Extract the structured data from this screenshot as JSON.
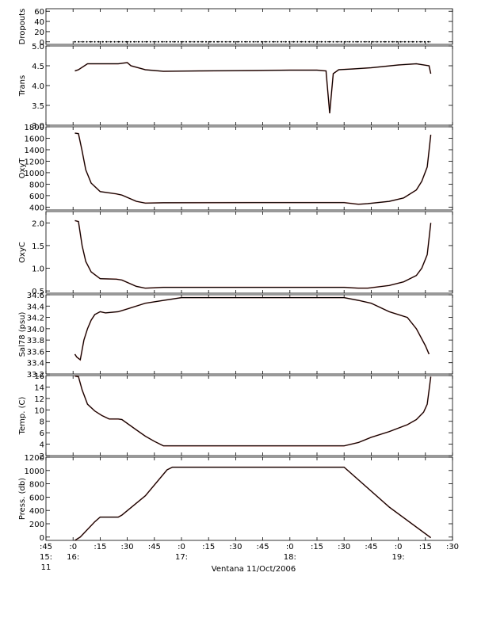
{
  "figure": {
    "caption": "Ventana 11/Oct/2006"
  },
  "chart_data": {
    "type": "line",
    "x_axis": {
      "unit": "time",
      "range": [
        "15:45",
        "19:30"
      ],
      "tick_minutes": [
        945,
        960,
        975,
        990,
        1005,
        1020,
        1035,
        1050,
        1065,
        1080,
        1095,
        1110,
        1125,
        1140,
        1155,
        1170
      ],
      "tick_labels": [
        ":45",
        ":0",
        ":15",
        ":30",
        ":45",
        ":0",
        ":15",
        ":30",
        ":45",
        ":0",
        ":15",
        ":30",
        ":45",
        ":0",
        ":15",
        ":30"
      ],
      "hour_labels": [
        {
          "minute": 945,
          "text": "15:"
        },
        {
          "minute": 960,
          "text": "16:"
        },
        {
          "minute": 1020,
          "text": "17:"
        },
        {
          "minute": 1080,
          "text": "18:"
        },
        {
          "minute": 1140,
          "text": "19:"
        }
      ],
      "day_label": {
        "minute": 945,
        "text": "11"
      }
    },
    "panels": [
      {
        "id": "dropouts",
        "ylabel": "Dropouts",
        "ylim": [
          -5,
          65
        ],
        "yticks": [
          0,
          20,
          40,
          60
        ],
        "ytick_labels": [
          "0",
          "20",
          "40",
          "60"
        ],
        "series": [
          {
            "style": "dots",
            "x": [
              961,
              1158
            ],
            "y_constant": 0
          }
        ]
      },
      {
        "id": "trans",
        "ylabel": "Trans",
        "ylim": [
          3.0,
          5.0
        ],
        "yticks": [
          3.0,
          3.5,
          4.0,
          4.5,
          5.0
        ],
        "ytick_labels": [
          "3.0",
          "3.5",
          "4.0",
          "4.5",
          "5.0"
        ],
        "series": [
          {
            "x": [
              961,
              963,
              968,
              985,
              990,
              992,
              1000,
              1010,
              1030,
              1060,
              1080,
              1095,
              1100,
              1102,
              1104,
              1107,
              1115,
              1125,
              1140,
              1150,
              1157,
              1158
            ],
            "y": [
              4.37,
              4.4,
              4.55,
              4.55,
              4.58,
              4.5,
              4.4,
              4.36,
              4.37,
              4.38,
              4.39,
              4.39,
              4.37,
              3.3,
              4.3,
              4.4,
              4.42,
              4.45,
              4.52,
              4.55,
              4.5,
              4.3
            ]
          }
        ]
      },
      {
        "id": "oxyt",
        "ylabel": "OxyT",
        "ylim": [
          350,
          1800
        ],
        "yticks": [
          400,
          600,
          800,
          1000,
          1200,
          1400,
          1600,
          1800
        ],
        "ytick_labels": [
          "400",
          "600",
          "800",
          "1000",
          "1200",
          "1400",
          "1600",
          "1800"
        ],
        "series": [
          {
            "x": [
              961,
              963,
              965,
              967,
              970,
              975,
              984,
              987,
              995,
              1000,
              1010,
              1060,
              1110,
              1118,
              1123,
              1135,
              1143,
              1150,
              1153,
              1156,
              1158
            ],
            "y": [
              1690,
              1680,
              1380,
              1050,
              820,
              670,
              630,
              610,
              500,
              470,
              475,
              478,
              478,
              450,
              460,
              500,
              560,
              700,
              850,
              1100,
              1660
            ]
          }
        ]
      },
      {
        "id": "oxyc",
        "ylabel": "OxyC",
        "ylim": [
          0.45,
          2.25
        ],
        "yticks": [
          0.5,
          1.0,
          1.5,
          2.0
        ],
        "ytick_labels": [
          "0.5",
          "1.0",
          "1.5",
          "2.0"
        ],
        "series": [
          {
            "x": [
              961,
              963,
              965,
              967,
              970,
              975,
              984,
              987,
              995,
              1000,
              1010,
              1060,
              1110,
              1118,
              1123,
              1135,
              1143,
              1150,
              1153,
              1156,
              1158
            ],
            "y": [
              2.05,
              2.03,
              1.5,
              1.15,
              0.92,
              0.77,
              0.76,
              0.74,
              0.6,
              0.56,
              0.58,
              0.58,
              0.58,
              0.56,
              0.56,
              0.62,
              0.7,
              0.84,
              1.0,
              1.3,
              2.0
            ]
          }
        ]
      },
      {
        "id": "sal78",
        "ylabel": "Sal78 (psu)",
        "ylim": [
          33.2,
          34.6
        ],
        "yticks": [
          33.2,
          33.4,
          33.6,
          33.8,
          34.0,
          34.2,
          34.4,
          34.6
        ],
        "ytick_labels": [
          "33.2",
          "33.4",
          "33.6",
          "33.8",
          "34.0",
          "34.2",
          "34.4",
          "34.6"
        ],
        "series": [
          {
            "x": [
              961,
              962,
              964,
              966,
              968,
              970,
              972,
              975,
              978,
              985,
              990,
              1000,
              1010,
              1020,
              1060,
              1110,
              1118,
              1125,
              1135,
              1145,
              1150,
              1155,
              1157
            ],
            "y": [
              33.55,
              33.5,
              33.45,
              33.8,
              34.0,
              34.15,
              34.25,
              34.3,
              34.28,
              34.3,
              34.35,
              34.45,
              34.5,
              34.55,
              34.55,
              34.55,
              34.5,
              34.45,
              34.3,
              34.2,
              34.0,
              33.7,
              33.55
            ]
          }
        ]
      },
      {
        "id": "temp",
        "ylabel": "Temp. (C)",
        "ylim": [
          2,
          16
        ],
        "yticks": [
          2,
          4,
          6,
          8,
          10,
          12,
          14,
          16
        ],
        "ytick_labels": [
          "2",
          "4",
          "6",
          "8",
          "10",
          "12",
          "14",
          "16"
        ],
        "series": [
          {
            "x": [
              961,
              963,
              965,
              968,
              972,
              976,
              980,
              985,
              987,
              995,
              1000,
              1005,
              1010,
              1060,
              1110,
              1118,
              1125,
              1135,
              1145,
              1150,
              1154,
              1156,
              1158
            ],
            "y": [
              15.9,
              15.8,
              13.5,
              11.0,
              9.8,
              9.0,
              8.4,
              8.4,
              8.3,
              6.5,
              5.4,
              4.5,
              3.7,
              3.7,
              3.7,
              4.3,
              5.2,
              6.2,
              7.4,
              8.3,
              9.6,
              11.0,
              15.8
            ]
          }
        ]
      },
      {
        "id": "press",
        "ylabel": "Press. (db)",
        "ylim": [
          -50,
          1200
        ],
        "yticks": [
          0,
          200,
          400,
          600,
          800,
          1000,
          1200
        ],
        "ytick_labels": [
          "0",
          "200",
          "400",
          "600",
          "800",
          "1000",
          "1200"
        ],
        "series": [
          {
            "x": [
              961,
              964,
              972,
              975,
              985,
              987,
              1000,
              1012,
              1015,
              1060,
              1110,
              1135,
              1158
            ],
            "y": [
              -50,
              0,
              230,
              300,
              300,
              330,
              620,
              1010,
              1050,
              1050,
              1050,
              450,
              -10
            ]
          }
        ]
      }
    ]
  }
}
